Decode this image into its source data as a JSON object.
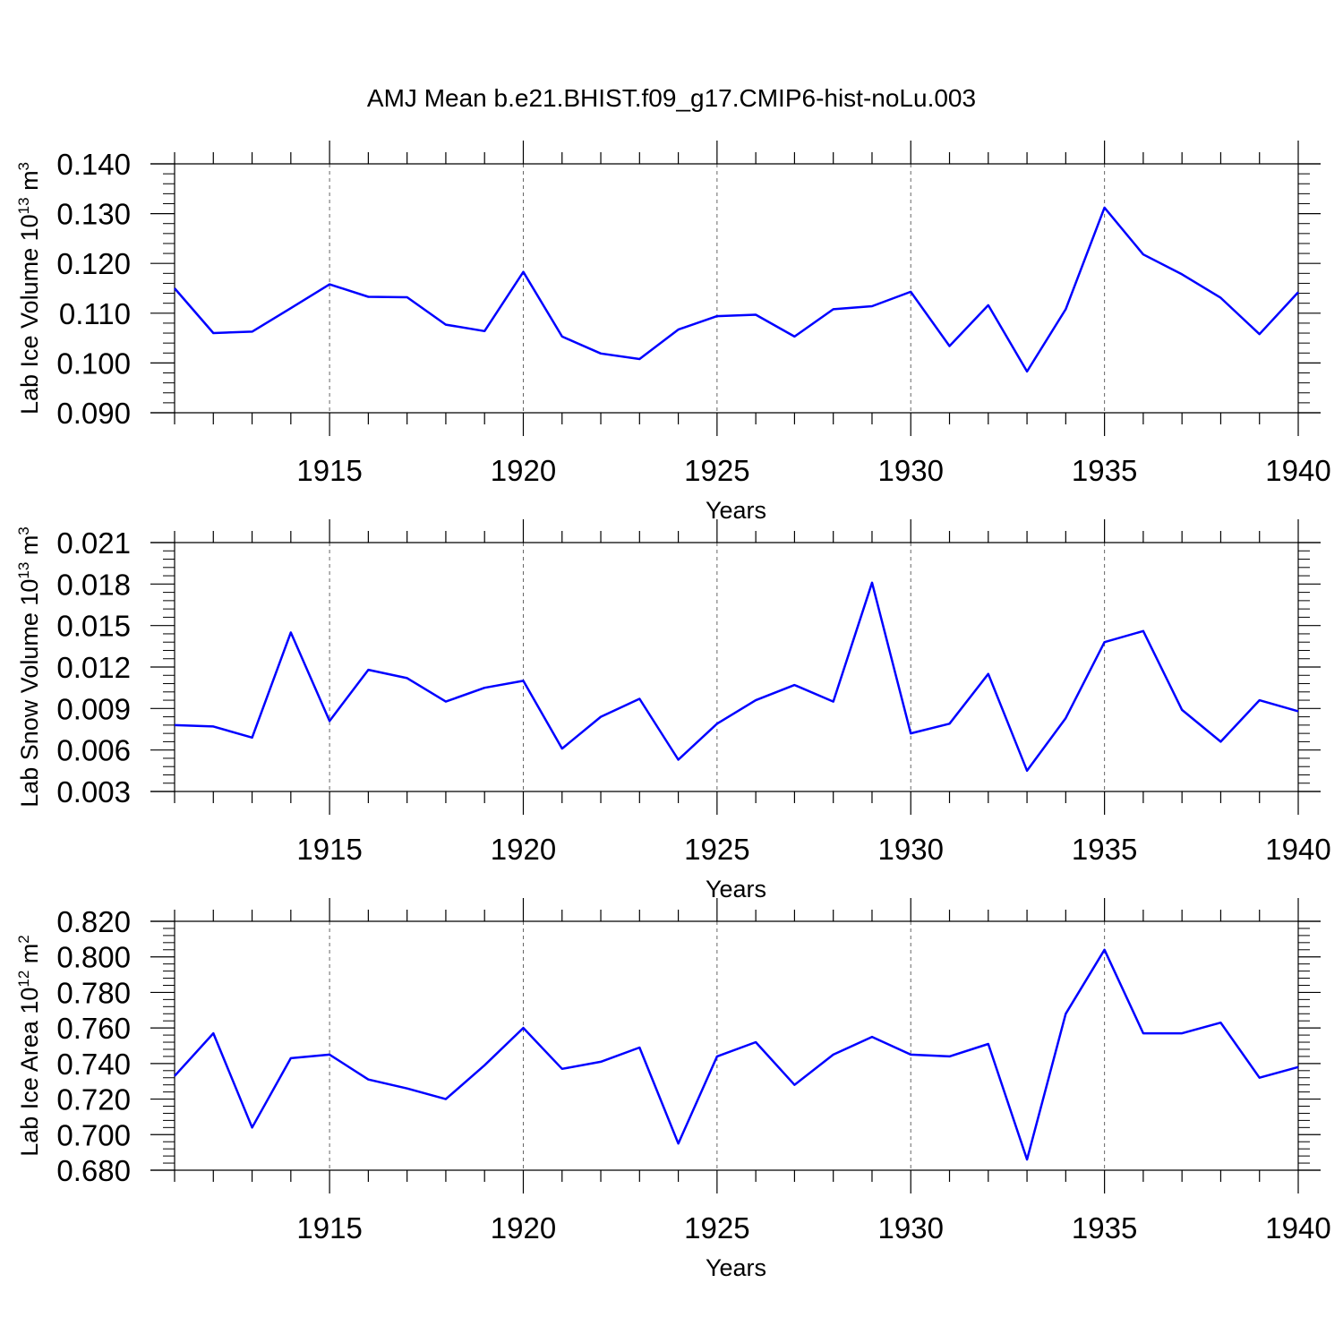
{
  "chart_data": {
    "type": "line",
    "title": "AMJ Mean b.e21.BHIST.f09_g17.CMIP6-hist-noLu.003",
    "colors": {
      "line": "#0000ff",
      "axis": "#000000",
      "grid": "#666666"
    },
    "panels": [
      {
        "ylabel": "Lab Ice Volume",
        "ylabel_base": "10",
        "ylabel_exp": "13",
        "ylabel_unit": " m",
        "ylabel_unit_exp": "3",
        "xlabel": "Years",
        "xlim": [
          1911,
          1940
        ],
        "ylim": [
          0.09,
          0.14
        ],
        "yticks": [
          "0.090",
          "0.100",
          "0.110",
          "0.120",
          "0.130",
          "0.140"
        ],
        "xticks": [
          "1915",
          "1920",
          "1925",
          "1930",
          "1935",
          "1940"
        ],
        "x": [
          1911,
          1912,
          1913,
          1914,
          1915,
          1916,
          1917,
          1918,
          1919,
          1920,
          1921,
          1922,
          1923,
          1924,
          1925,
          1926,
          1927,
          1928,
          1929,
          1930,
          1931,
          1932,
          1933,
          1934,
          1935,
          1936,
          1937,
          1938,
          1939,
          1940
        ],
        "values": [
          0.115,
          0.106,
          0.1063,
          0.111,
          0.1158,
          0.1133,
          0.1132,
          0.1077,
          0.1064,
          0.1183,
          0.1053,
          0.1019,
          0.1008,
          0.1067,
          0.1094,
          0.1097,
          0.1053,
          0.1108,
          0.1114,
          0.1143,
          0.1034,
          0.1116,
          0.0983,
          0.1108,
          0.1312,
          0.1218,
          0.1178,
          0.1131,
          0.1058,
          0.1142
        ]
      },
      {
        "ylabel": "Lab Snow Volume",
        "ylabel_base": "10",
        "ylabel_exp": "13",
        "ylabel_unit": " m",
        "ylabel_unit_exp": "3",
        "xlabel": "Years",
        "xlim": [
          1911,
          1940
        ],
        "ylim": [
          0.003,
          0.021
        ],
        "yticks": [
          "0.003",
          "0.006",
          "0.009",
          "0.012",
          "0.015",
          "0.018",
          "0.021"
        ],
        "xticks": [
          "1915",
          "1920",
          "1925",
          "1930",
          "1935",
          "1940"
        ],
        "x": [
          1911,
          1912,
          1913,
          1914,
          1915,
          1916,
          1917,
          1918,
          1919,
          1920,
          1921,
          1922,
          1923,
          1924,
          1925,
          1926,
          1927,
          1928,
          1929,
          1930,
          1931,
          1932,
          1933,
          1934,
          1935,
          1936,
          1937,
          1938,
          1939,
          1940
        ],
        "values": [
          0.0078,
          0.0077,
          0.0069,
          0.0145,
          0.0081,
          0.0118,
          0.0112,
          0.0095,
          0.0105,
          0.011,
          0.0061,
          0.0084,
          0.0097,
          0.0053,
          0.0079,
          0.0096,
          0.0107,
          0.0095,
          0.0181,
          0.0072,
          0.0079,
          0.0115,
          0.0045,
          0.0083,
          0.0138,
          0.0146,
          0.0089,
          0.0066,
          0.0096,
          0.0088
        ]
      },
      {
        "ylabel": "Lab Ice Area",
        "ylabel_base": "10",
        "ylabel_exp": "12",
        "ylabel_unit": " m",
        "ylabel_unit_exp": "2",
        "xlabel": "Years",
        "xlim": [
          1911,
          1940
        ],
        "ylim": [
          0.68,
          0.82
        ],
        "yticks": [
          "0.680",
          "0.700",
          "0.720",
          "0.740",
          "0.760",
          "0.780",
          "0.800",
          "0.820"
        ],
        "xticks": [
          "1915",
          "1920",
          "1925",
          "1930",
          "1935",
          "1940"
        ],
        "x": [
          1911,
          1912,
          1913,
          1914,
          1915,
          1916,
          1917,
          1918,
          1919,
          1920,
          1921,
          1922,
          1923,
          1924,
          1925,
          1926,
          1927,
          1928,
          1929,
          1930,
          1931,
          1932,
          1933,
          1934,
          1935,
          1936,
          1937,
          1938,
          1939,
          1940
        ],
        "values": [
          0.733,
          0.757,
          0.704,
          0.743,
          0.745,
          0.731,
          0.726,
          0.72,
          0.739,
          0.76,
          0.737,
          0.741,
          0.749,
          0.695,
          0.744,
          0.752,
          0.728,
          0.745,
          0.755,
          0.745,
          0.744,
          0.751,
          0.686,
          0.768,
          0.804,
          0.757,
          0.757,
          0.763,
          0.732,
          0.738
        ]
      }
    ]
  }
}
